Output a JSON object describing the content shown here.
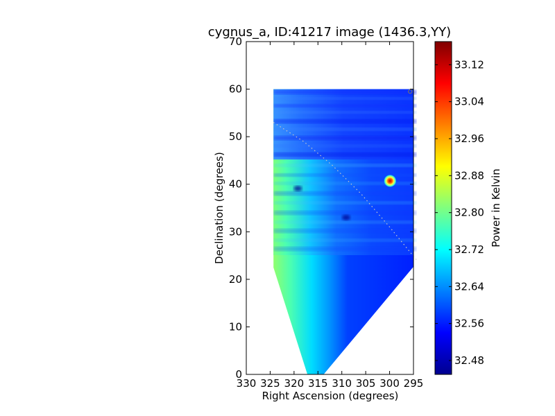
{
  "chart_data": {
    "type": "heatmap",
    "title": "cygnus_a, ID:41217 image (1436.3,YY)",
    "xlabel": "Right Ascension (degrees)",
    "ylabel": "Declination (degrees)",
    "xlim": [
      330,
      295
    ],
    "ylim": [
      0,
      70
    ],
    "x_ticks": [
      330,
      325,
      320,
      315,
      310,
      305,
      300,
      295
    ],
    "y_ticks": [
      0,
      10,
      20,
      30,
      40,
      50,
      60,
      70
    ],
    "grid": false,
    "colorbar": {
      "label": "Power in Kelvin",
      "range": [
        32.45,
        33.17
      ],
      "ticks": [
        "32.48",
        "32.56",
        "32.64",
        "32.72",
        "32.80",
        "32.88",
        "32.96",
        "33.04",
        "33.12"
      ],
      "colormap": "jet"
    },
    "map_footprint": {
      "top_dec": 60,
      "left_ra": 324.3,
      "right_ra": 294.3,
      "left_edge_lower_dec": 22.5,
      "right_edge_lower_dec": 23.5,
      "bottom_ra_range": [
        317.2,
        313.8
      ],
      "bottom_dec": 0
    },
    "features": [
      {
        "type": "bright_source",
        "ra": 299.9,
        "dec": 40.7,
        "value": 33.08
      },
      {
        "type": "small_circle_marker",
        "ra": 295.7,
        "dec": 59.5
      },
      {
        "type": "dim_spot",
        "ra": 319.2,
        "dec": 39.1,
        "value": 32.5
      },
      {
        "type": "dim_spot",
        "ra": 309.1,
        "dec": 33.0,
        "value": 32.5
      }
    ],
    "dotted_curve": [
      [
        324.3,
        53.0
      ],
      [
        318.0,
        49.0
      ],
      [
        312.0,
        44.0
      ],
      [
        306.0,
        38.0
      ],
      [
        300.0,
        31.0
      ],
      [
        294.3,
        24.0
      ]
    ],
    "palette": {
      "dark_blue": "#00008f",
      "blue": "#0000ff",
      "cyan": "#00ffff",
      "yellow": "#ffff00",
      "red": "#ff0000",
      "dark_red": "#800000"
    }
  }
}
